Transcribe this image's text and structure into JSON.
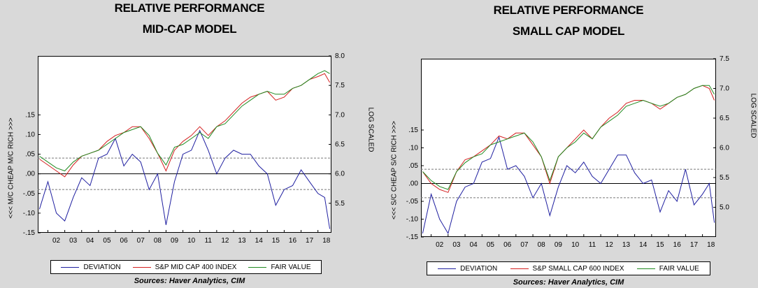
{
  "chart_data": [
    {
      "type": "line",
      "title_line1": "RELATIVE PERFORMANCE",
      "title_line2": "MID-CAP MODEL",
      "left_axis_label": "<<< M/C CHEAP    M/C RICH >>>",
      "right_axis_label": "LOG SCALED",
      "x_ticks": [
        "02",
        "03",
        "04",
        "05",
        "06",
        "07",
        "08",
        "09",
        "10",
        "11",
        "12",
        "13",
        "14",
        "15",
        "16",
        "17",
        "18"
      ],
      "y_left_ticks": [
        ".15",
        ".10",
        ".05",
        ".00",
        "-.05",
        "-.10",
        "-.15"
      ],
      "y_left_lim": [
        -0.15,
        0.3
      ],
      "y_right_ticks": [
        "8.0",
        "7.5",
        "7.0",
        "6.5",
        "6.0",
        "5.5"
      ],
      "y_right_lim": [
        5.0,
        8.0
      ],
      "hlines": [
        0.04,
        0.0,
        -0.04
      ],
      "x": [
        2001.5,
        2002.0,
        2002.5,
        2003.0,
        2003.5,
        2004.0,
        2004.5,
        2005.0,
        2005.5,
        2006.0,
        2006.5,
        2007.0,
        2007.5,
        2008.0,
        2008.5,
        2009.0,
        2009.5,
        2010.0,
        2010.5,
        2011.0,
        2011.5,
        2012.0,
        2012.5,
        2013.0,
        2013.5,
        2014.0,
        2014.5,
        2015.0,
        2015.5,
        2016.0,
        2016.5,
        2017.0,
        2017.5,
        2018.0,
        2018.4,
        2018.7
      ],
      "series": [
        {
          "name": "DEVIATION",
          "axis": "left",
          "color": "#1f1fa0",
          "values": [
            -0.09,
            -0.02,
            -0.1,
            -0.12,
            -0.06,
            -0.01,
            -0.03,
            0.04,
            0.05,
            0.09,
            0.02,
            0.05,
            0.03,
            -0.04,
            0.0,
            -0.13,
            -0.02,
            0.05,
            0.06,
            0.11,
            0.06,
            0.0,
            0.04,
            0.06,
            0.05,
            0.05,
            0.02,
            0.0,
            -0.08,
            -0.04,
            -0.03,
            0.01,
            -0.02,
            -0.05,
            -0.06,
            -0.14
          ]
        },
        {
          "name": "S&P MID CAP 400 INDEX",
          "axis": "right",
          "color": "#d42020",
          "values": [
            6.25,
            6.15,
            6.05,
            5.95,
            6.15,
            6.3,
            6.35,
            6.4,
            6.55,
            6.65,
            6.7,
            6.8,
            6.8,
            6.6,
            6.35,
            6.05,
            6.4,
            6.55,
            6.65,
            6.8,
            6.65,
            6.8,
            6.9,
            7.05,
            7.2,
            7.3,
            7.35,
            7.4,
            7.25,
            7.3,
            7.45,
            7.5,
            7.6,
            7.65,
            7.7,
            7.55
          ]
        },
        {
          "name": "FAIR VALUE",
          "axis": "right",
          "color": "#208a20",
          "values": [
            6.3,
            6.2,
            6.1,
            6.05,
            6.2,
            6.3,
            6.35,
            6.4,
            6.5,
            6.6,
            6.7,
            6.75,
            6.8,
            6.65,
            6.35,
            6.15,
            6.45,
            6.5,
            6.6,
            6.7,
            6.6,
            6.8,
            6.85,
            7.0,
            7.15,
            7.25,
            7.35,
            7.4,
            7.35,
            7.35,
            7.45,
            7.5,
            7.6,
            7.7,
            7.75,
            7.7
          ]
        }
      ],
      "legend": [
        {
          "label": "DEVIATION",
          "color": "#1f1fa0"
        },
        {
          "label": "S&P MID CAP 400 INDEX",
          "color": "#d42020"
        },
        {
          "label": "FAIR VALUE",
          "color": "#208a20"
        }
      ],
      "source": "Sources:  Haver Analytics, CIM"
    },
    {
      "type": "line",
      "title_line1": "RELATIVE PERFORMANCE",
      "title_line2": "SMALL CAP MODEL",
      "left_axis_label": "<<< S/C CHEAP    S/C RICH >>>",
      "right_axis_label": "LOG SCALED",
      "x_ticks": [
        "02",
        "03",
        "04",
        "05",
        "06",
        "07",
        "08",
        "09",
        "10",
        "11",
        "12",
        "13",
        "14",
        "15",
        "16",
        "17",
        "18"
      ],
      "y_left_ticks": [
        ".15",
        ".10",
        ".05",
        ".00",
        "-.05",
        "-.10",
        "-.15"
      ],
      "y_left_lim": [
        -0.15,
        0.35
      ],
      "y_right_ticks": [
        "7.5",
        "7.0",
        "6.5",
        "6.0",
        "5.5",
        "5.0"
      ],
      "y_right_lim": [
        4.5,
        7.5
      ],
      "hlines": [
        0.04,
        0.0,
        -0.04
      ],
      "x": [
        2001.5,
        2002.0,
        2002.5,
        2003.0,
        2003.5,
        2004.0,
        2004.5,
        2005.0,
        2005.5,
        2006.0,
        2006.5,
        2007.0,
        2007.5,
        2008.0,
        2008.5,
        2009.0,
        2009.5,
        2010.0,
        2010.5,
        2011.0,
        2011.5,
        2012.0,
        2012.5,
        2013.0,
        2013.5,
        2014.0,
        2014.5,
        2015.0,
        2015.5,
        2016.0,
        2016.5,
        2017.0,
        2017.5,
        2018.0,
        2018.4,
        2018.7
      ],
      "series": [
        {
          "name": "DEVIATION",
          "axis": "left",
          "color": "#1f1fa0",
          "values": [
            -0.14,
            -0.03,
            -0.1,
            -0.14,
            -0.05,
            -0.01,
            0.0,
            0.06,
            0.07,
            0.13,
            0.04,
            0.05,
            0.02,
            -0.04,
            0.0,
            -0.09,
            -0.01,
            0.05,
            0.03,
            0.06,
            0.02,
            0.0,
            0.04,
            0.08,
            0.08,
            0.03,
            0.0,
            0.01,
            -0.08,
            -0.02,
            -0.05,
            0.04,
            -0.06,
            -0.03,
            0.0,
            -0.11
          ]
        },
        {
          "name": "S&P SMALL CAP 600 INDEX",
          "axis": "right",
          "color": "#d42020",
          "values": [
            5.6,
            5.4,
            5.3,
            5.25,
            5.6,
            5.8,
            5.85,
            5.95,
            6.05,
            6.2,
            6.15,
            6.25,
            6.25,
            6.05,
            5.85,
            5.4,
            5.85,
            6.0,
            6.15,
            6.3,
            6.15,
            6.35,
            6.5,
            6.6,
            6.75,
            6.8,
            6.8,
            6.75,
            6.65,
            6.75,
            6.85,
            6.9,
            7.0,
            7.05,
            7.0,
            6.8
          ]
        },
        {
          "name": "FAIR VALUE",
          "axis": "right",
          "color": "#208a20",
          "values": [
            5.6,
            5.45,
            5.35,
            5.3,
            5.6,
            5.75,
            5.85,
            5.9,
            6.05,
            6.1,
            6.15,
            6.2,
            6.25,
            6.1,
            5.85,
            5.45,
            5.85,
            6.0,
            6.1,
            6.25,
            6.15,
            6.35,
            6.45,
            6.55,
            6.7,
            6.75,
            6.8,
            6.75,
            6.7,
            6.75,
            6.85,
            6.9,
            7.0,
            7.05,
            7.05,
            6.9
          ]
        }
      ],
      "legend": [
        {
          "label": "DEVIATION",
          "color": "#1f1fa0"
        },
        {
          "label": "S&P SMALL CAP 600 INDEX",
          "color": "#d42020"
        },
        {
          "label": "FAIR VALUE",
          "color": "#208a20"
        }
      ],
      "source": "Sources:  Haver Analytics, CIM"
    }
  ]
}
